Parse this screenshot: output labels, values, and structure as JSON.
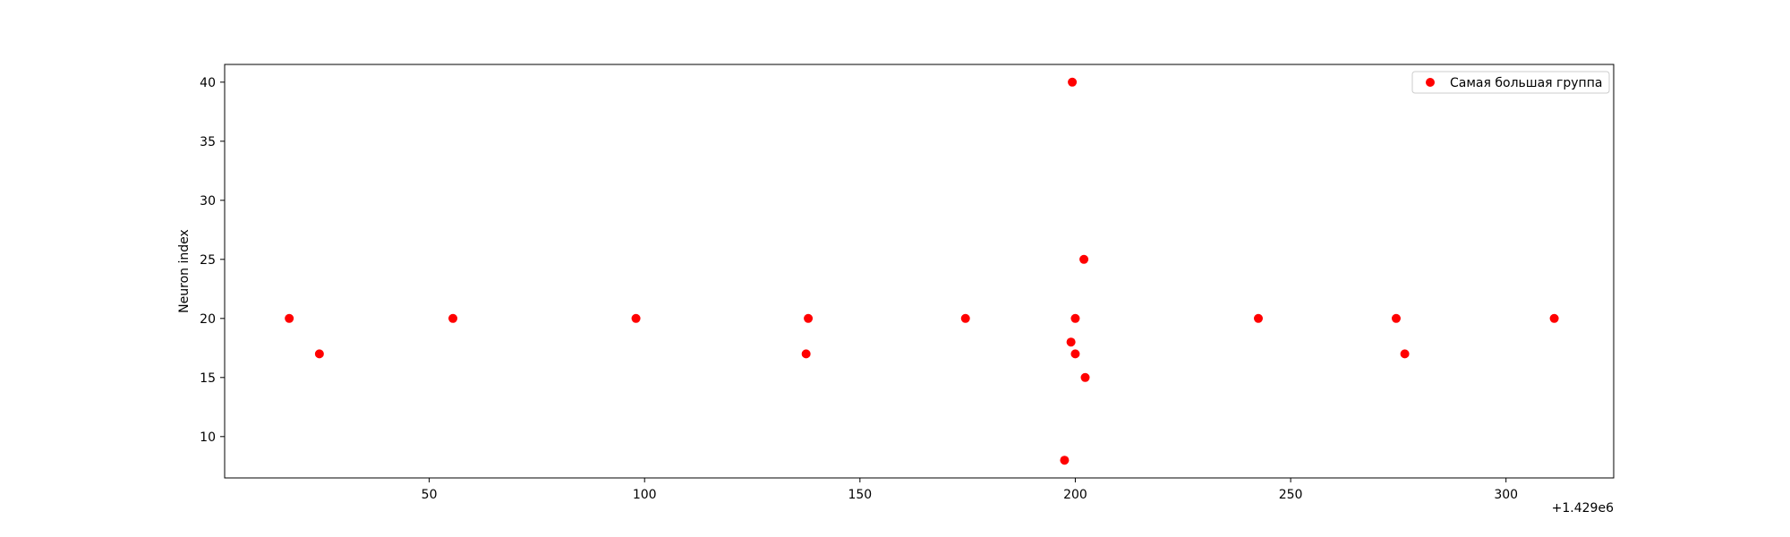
{
  "chart_data": {
    "type": "scatter",
    "title": "",
    "xlabel": "",
    "ylabel": "Neuron index",
    "x_offset_label": "+1.429e6",
    "xlim": [
      2.5,
      325
    ],
    "ylim": [
      6.5,
      41.5
    ],
    "x_ticks": [
      50,
      100,
      150,
      200,
      250,
      300
    ],
    "y_ticks": [
      10,
      15,
      20,
      25,
      30,
      35,
      40
    ],
    "grid": false,
    "legend_position": "top-right",
    "series": [
      {
        "name": "Самая большая группа",
        "color": "#ff0000",
        "points": [
          {
            "x": 17.5,
            "y": 20
          },
          {
            "x": 24.5,
            "y": 17
          },
          {
            "x": 55.5,
            "y": 20
          },
          {
            "x": 98,
            "y": 20
          },
          {
            "x": 137.5,
            "y": 17
          },
          {
            "x": 138,
            "y": 20
          },
          {
            "x": 174.5,
            "y": 20
          },
          {
            "x": 197.5,
            "y": 8
          },
          {
            "x": 199,
            "y": 18
          },
          {
            "x": 199.3,
            "y": 40
          },
          {
            "x": 200,
            "y": 20
          },
          {
            "x": 200,
            "y": 17
          },
          {
            "x": 202,
            "y": 25
          },
          {
            "x": 202.3,
            "y": 15
          },
          {
            "x": 242.5,
            "y": 20
          },
          {
            "x": 274.5,
            "y": 20
          },
          {
            "x": 276.5,
            "y": 17
          },
          {
            "x": 311.2,
            "y": 20
          }
        ]
      }
    ]
  }
}
